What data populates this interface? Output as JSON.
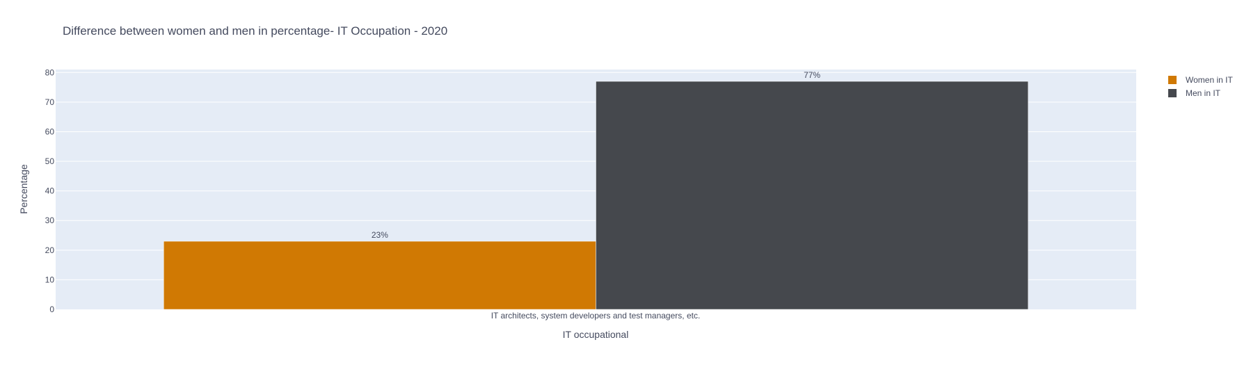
{
  "chart_data": {
    "type": "bar",
    "title": "Difference between women and men in percentage- IT Occupation - 2020",
    "xlabel": "IT occupational",
    "ylabel": "Percentage",
    "categories": [
      "IT architects, system developers and test managers, etc."
    ],
    "ylim": [
      0,
      81
    ],
    "yticks": [
      0,
      10,
      20,
      30,
      40,
      50,
      60,
      70,
      80
    ],
    "grid": true,
    "legend_position": "top-right",
    "series": [
      {
        "name": "Women in IT",
        "values": [
          23
        ],
        "labels": [
          "23%"
        ],
        "color": "#d07903"
      },
      {
        "name": "Men in IT",
        "values": [
          77
        ],
        "labels": [
          "77%"
        ],
        "color": "#45484d"
      }
    ],
    "plot_background": "#e5ecf6"
  }
}
